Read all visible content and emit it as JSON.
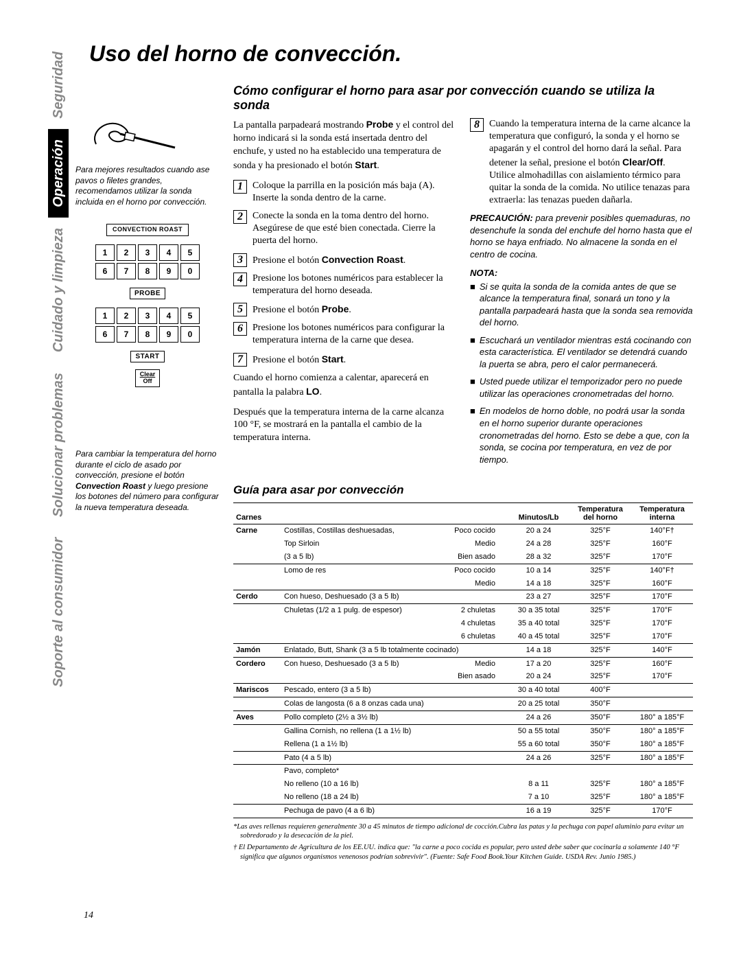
{
  "tabs": {
    "seguridad": "Seguridad",
    "operacion": "Operación",
    "cuidado": "Cuidado y limpieza",
    "solucionar": "Solucionar problemas",
    "soporte": "Soporte al consumidor"
  },
  "page_number": "14",
  "title": "Uso del horno de convección.",
  "left": {
    "probe_caption": "Para mejores resultados cuando ase pavos o filetes grandes, recomendamos utilizar la sonda incluida en el horno por convección.",
    "btn_convection": "Convection Roast",
    "btn_probe": "Probe",
    "btn_start": "Start",
    "btn_clear": "Clear",
    "btn_off": "Off",
    "keys": [
      "1",
      "2",
      "3",
      "4",
      "5",
      "6",
      "7",
      "8",
      "9",
      "0"
    ],
    "temp_caption_1": "Para cambiar la temperatura del horno durante el ciclo de asado por convección, presione el botón ",
    "temp_caption_bold": "Convection Roast",
    "temp_caption_2": " y luego presione los botones del número para configurar la nueva temperatura deseada."
  },
  "section1": {
    "heading": "Cómo configurar el horno para asar por convección cuando se utiliza la sonda",
    "intro_1": "La pantalla parpadeará mostrando ",
    "intro_b1": "Probe",
    "intro_2": " y el control del horno indicará si la sonda está insertada dentro del enchufe, y usted no ha establecido una temperatura de sonda y ha presionado el botón ",
    "intro_b2": "Start",
    "intro_3": ".",
    "step1": "Coloque la parrilla en la posición más baja (A). Inserte la sonda dentro de la carne.",
    "step2": "Conecte la sonda en la toma dentro del horno. Asegúrese de que esté bien conectada. Cierre la puerta del horno.",
    "step3_a": "Presione el botón ",
    "step3_b": "Convection Roast",
    "step3_c": ".",
    "step4": "Presione los botones numéricos para establecer la temperatura del horno deseada.",
    "step5_a": "Presione el botón ",
    "step5_b": "Probe",
    "step5_c": ".",
    "step6": "Presione los botones numéricos para configurar la temperatura interna de la carne que desea.",
    "step7_a": "Presione el botón ",
    "step7_b": "Start",
    "step7_c": ".",
    "mid_1": "Cuando el horno comienza a calentar, aparecerá en pantalla la palabra ",
    "mid_b": "LO",
    "mid_2": ".",
    "mid_p2": "Después que la temperatura interna de la carne alcanza 100 °F, se mostrará en la pantalla el cambio de la temperatura interna.",
    "step8_a": "Cuando la temperatura interna de la carne alcance la temperatura que configuró, la sonda y el horno se apagarán y el control del horno dará la señal. Para detener la señal, presione el botón ",
    "step8_b": "Clear/Off",
    "step8_c": ". Utilice almohadillas con aislamiento térmico para quitar la sonda de la comida. No utilice tenazas para extraerla: las tenazas pueden dañarla.",
    "caution_b": "PRECAUCIÓN:",
    "caution": " para prevenir posibles quemaduras, no desenchufe la sonda del enchufe del horno hasta que el horno se haya enfriado. No almacene la sonda en el centro de cocina.",
    "nota": "NOTA:",
    "n1": "Si se quita la sonda de la comida antes de que se alcance la temperatura final, sonará un tono y la pantalla parpadeará hasta que la sonda sea removida del horno.",
    "n2": "Escuchará un ventilador mientras está cocinando con esta característica. El ventilador se detendrá cuando la puerta se abra, pero el calor permanecerá.",
    "n3": "Usted puede utilizar el temporizador pero no puede utilizar las operaciones cronometradas del horno.",
    "n4": "En modelos de horno doble, no podrá usar la sonda en el horno superior durante operaciones cronometradas del horno. Esto se debe a que, con la sonda, se cocina por temperatura, en vez de por tiempo."
  },
  "section2": {
    "heading": "Guía para asar por convección",
    "headers": [
      "Carnes",
      "",
      "",
      "Minutos/Lb",
      "Temperatura del horno",
      "Temperatura interna"
    ],
    "fn1": "*Las aves rellenas requieren generalmente 30 a 45 minutos de tiempo adicional de cocción.Cubra las patas y la pechuga con papel aluminio para evitar un sobredorado y la desecación de la piel.",
    "fn2": "† El Departamento de Agricultura de los EE.UU. indica que: \"la carne a poco cocida es popular, pero usted debe saber que cocinarla a solamente 140 °F significa que algunos organismos venenosos podrían sobrevivir\". (Fuente: Safe Food Book.Your Kitchen Guide. USDA Rev. Junio 1985.)"
  }
}
